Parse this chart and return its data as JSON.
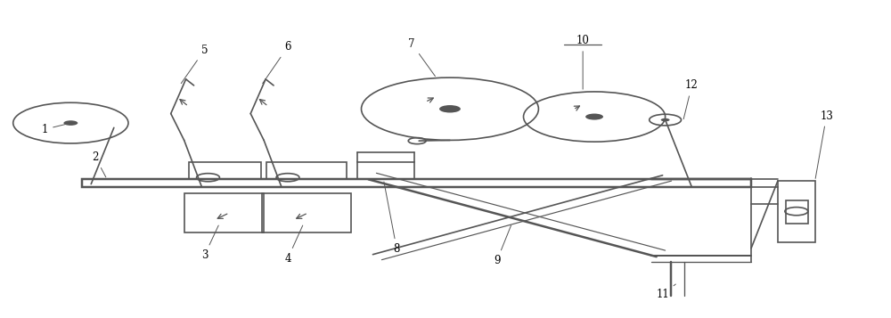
{
  "bg_color": "#ffffff",
  "line_color": "#555555",
  "lw": 1.2,
  "fig_width": 10.0,
  "fig_height": 3.57
}
